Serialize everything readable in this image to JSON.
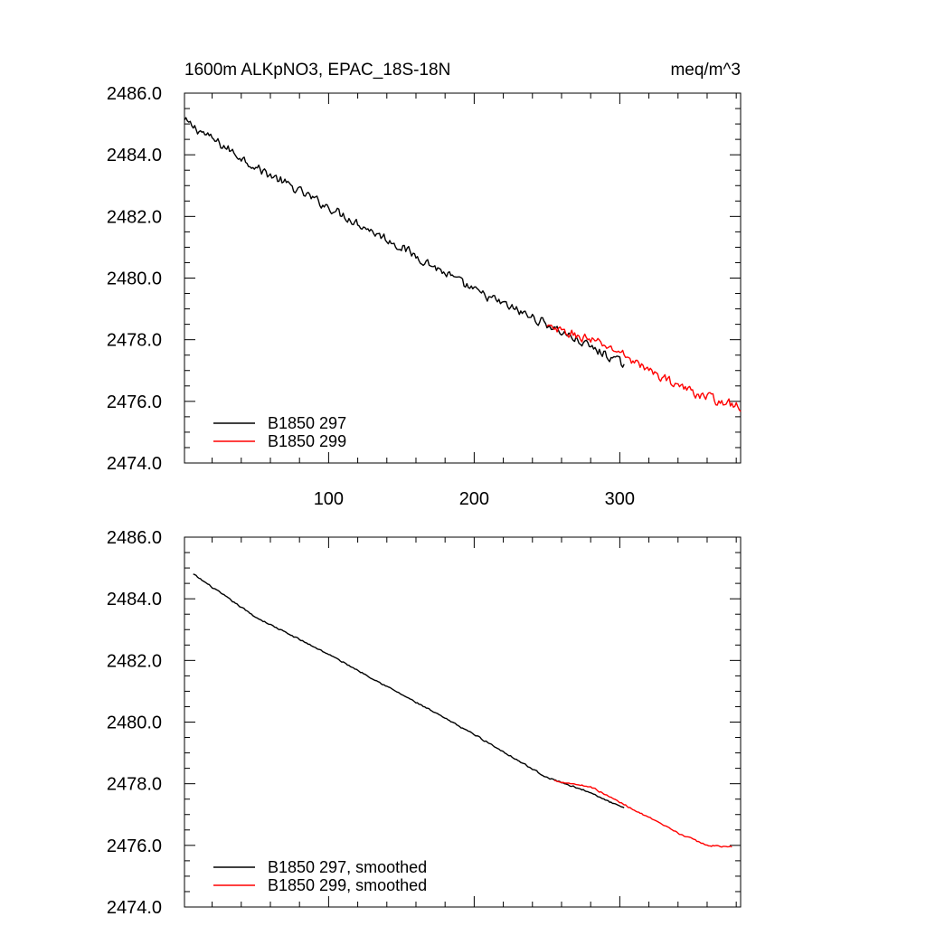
{
  "chart_data": [
    {
      "type": "line",
      "title_left": "1600m ALKpNO3, EPAC_18S-18N",
      "title_right": "meq/m^3",
      "xlabel": "",
      "ylabel": "",
      "xlim": [
        1,
        383
      ],
      "ylim": [
        2474,
        2486
      ],
      "x_tick_labels": [
        "100",
        "200",
        "300"
      ],
      "x_ticks": [
        100,
        200,
        300
      ],
      "y_tick_labels": [
        "2474.0",
        "2476.0",
        "2478.0",
        "2480.0",
        "2482.0",
        "2484.0",
        "2486.0"
      ],
      "y_ticks": [
        2474,
        2476,
        2478,
        2480,
        2482,
        2484,
        2486
      ],
      "legend_position": "bottom-left",
      "series": [
        {
          "name": "B1850 297",
          "color": "#000000",
          "x_start": 1,
          "x_end": 303,
          "y_start": 2485.1,
          "y_end": 2477.2,
          "noise": 0.18,
          "anchors": [
            [
              1,
              2485.1
            ],
            [
              50,
              2483.6
            ],
            [
              100,
              2482.3
            ],
            [
              150,
              2481.0
            ],
            [
              200,
              2479.6
            ],
            [
              250,
              2478.5
            ],
            [
              303,
              2477.2
            ]
          ]
        },
        {
          "name": "B1850 299",
          "color": "#ff0000",
          "x_start": 250,
          "x_end": 383,
          "y_start": 2478.4,
          "y_end": 2475.8,
          "noise": 0.18,
          "anchors": [
            [
              250,
              2478.4
            ],
            [
              280,
              2478.0
            ],
            [
              300,
              2477.6
            ],
            [
              320,
              2477.0
            ],
            [
              350,
              2476.3
            ],
            [
              383,
              2475.8
            ]
          ]
        }
      ]
    },
    {
      "type": "line",
      "title_left": "",
      "title_right": "",
      "xlabel": "",
      "ylabel": "",
      "xlim": [
        1,
        383
      ],
      "ylim": [
        2474,
        2486
      ],
      "x_tick_labels": [],
      "x_ticks": [
        100,
        200,
        300
      ],
      "y_tick_labels": [
        "2474.0",
        "2476.0",
        "2478.0",
        "2480.0",
        "2482.0",
        "2484.0",
        "2486.0"
      ],
      "y_ticks": [
        2474,
        2476,
        2478,
        2480,
        2482,
        2484,
        2486
      ],
      "legend_position": "bottom-left",
      "series": [
        {
          "name": "B1850 297, smoothed",
          "color": "#000000",
          "x_start": 7,
          "x_end": 303,
          "y_start": 2484.8,
          "y_end": 2477.2,
          "noise": 0.03,
          "anchors": [
            [
              7,
              2484.8
            ],
            [
              50,
              2483.4
            ],
            [
              100,
              2482.2
            ],
            [
              150,
              2480.9
            ],
            [
              200,
              2479.6
            ],
            [
              250,
              2478.2
            ],
            [
              275,
              2477.8
            ],
            [
              303,
              2477.2
            ]
          ]
        },
        {
          "name": "B1850 299, smoothed",
          "color": "#ff0000",
          "x_start": 255,
          "x_end": 377,
          "y_start": 2478.1,
          "y_end": 2475.95,
          "noise": 0.03,
          "anchors": [
            [
              255,
              2478.1
            ],
            [
              280,
              2477.9
            ],
            [
              300,
              2477.4
            ],
            [
              320,
              2476.9
            ],
            [
              340,
              2476.4
            ],
            [
              360,
              2476.0
            ],
            [
              377,
              2475.95
            ]
          ]
        }
      ]
    }
  ]
}
